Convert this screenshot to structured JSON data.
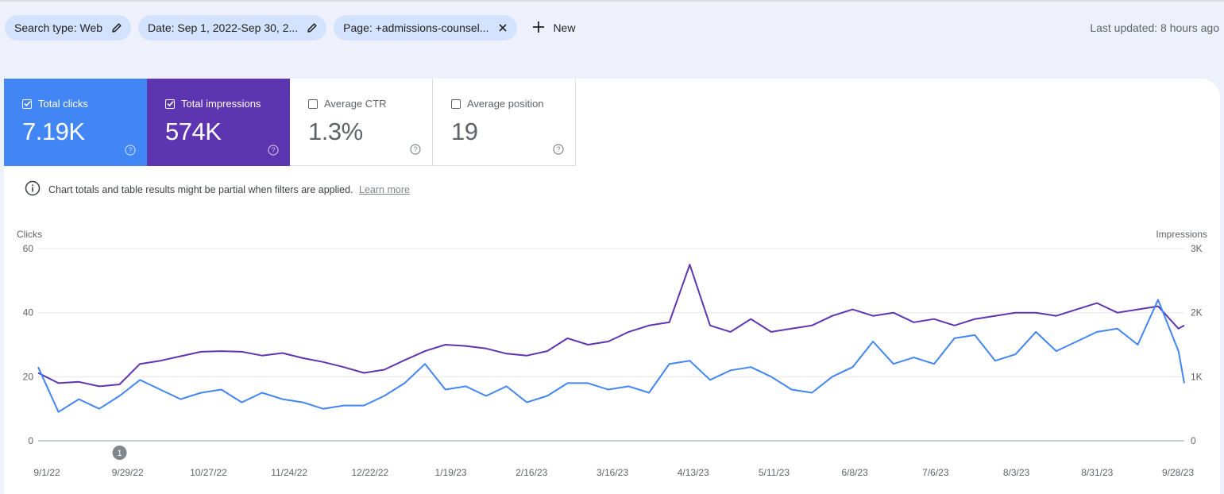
{
  "filters": {
    "search_type": "Search type: Web",
    "date": "Date: Sep 1, 2022-Sep 30, 2...",
    "page": "Page: +admissions-counsel...",
    "new_label": "New",
    "last_updated": "Last updated: 8 hours ago"
  },
  "metrics": [
    {
      "label": "Total clicks",
      "value": "7.19K",
      "checked": true,
      "color": "#4285f4"
    },
    {
      "label": "Total impressions",
      "value": "574K",
      "checked": true,
      "color": "#5e35b1"
    },
    {
      "label": "Average CTR",
      "value": "1.3%",
      "checked": false
    },
    {
      "label": "Average position",
      "value": "19",
      "checked": false
    }
  ],
  "notice": {
    "text": "Chart totals and table results might be partial when filters are applied.",
    "link": "Learn more"
  },
  "chart_data": {
    "type": "line",
    "ylabel_left": "Clicks",
    "ylabel_right": "Impressions",
    "y_left_ticks": [
      "60",
      "40",
      "20",
      "0"
    ],
    "y_right_ticks": [
      "3K",
      "2K",
      "1K",
      "0"
    ],
    "ylim_left": [
      0,
      60
    ],
    "ylim_right": [
      0,
      3000
    ],
    "x_tick_labels": [
      "9/1/22",
      "9/29/22",
      "10/27/22",
      "11/24/22",
      "12/22/22",
      "1/19/23",
      "2/16/23",
      "3/16/23",
      "4/13/23",
      "5/11/23",
      "6/8/23",
      "7/6/23",
      "8/3/23",
      "8/31/23",
      "9/28/23"
    ],
    "x_range": [
      "2022-09-01",
      "2023-09-30"
    ],
    "annotation": {
      "label": "1",
      "date": "2022-09-29"
    },
    "series": [
      {
        "name": "Total clicks",
        "axis": "left",
        "color": "#4285f4",
        "x": [
          "2022-09-01",
          "2022-09-08",
          "2022-09-15",
          "2022-09-22",
          "2022-09-29",
          "2022-10-06",
          "2022-10-13",
          "2022-10-20",
          "2022-10-27",
          "2022-11-03",
          "2022-11-10",
          "2022-11-17",
          "2022-11-24",
          "2022-12-01",
          "2022-12-08",
          "2022-12-15",
          "2022-12-22",
          "2022-12-29",
          "2023-01-05",
          "2023-01-12",
          "2023-01-19",
          "2023-01-26",
          "2023-02-02",
          "2023-02-09",
          "2023-02-16",
          "2023-02-23",
          "2023-03-02",
          "2023-03-09",
          "2023-03-16",
          "2023-03-23",
          "2023-03-30",
          "2023-04-06",
          "2023-04-13",
          "2023-04-20",
          "2023-04-27",
          "2023-05-04",
          "2023-05-11",
          "2023-05-18",
          "2023-05-25",
          "2023-06-01",
          "2023-06-08",
          "2023-06-15",
          "2023-06-22",
          "2023-06-29",
          "2023-07-06",
          "2023-07-13",
          "2023-07-20",
          "2023-07-27",
          "2023-08-03",
          "2023-08-10",
          "2023-08-17",
          "2023-08-24",
          "2023-08-31",
          "2023-09-07",
          "2023-09-14",
          "2023-09-21",
          "2023-09-28",
          "2023-09-30"
        ],
        "values": [
          23,
          9,
          13,
          10,
          14,
          19,
          16,
          13,
          15,
          16,
          12,
          15,
          13,
          12,
          10,
          11,
          11,
          14,
          18,
          24,
          16,
          17,
          14,
          17,
          12,
          14,
          18,
          18,
          16,
          17,
          15,
          24,
          25,
          19,
          22,
          23,
          20,
          16,
          15,
          20,
          23,
          31,
          24,
          26,
          24,
          32,
          33,
          25,
          27,
          34,
          28,
          31,
          34,
          35,
          30,
          44,
          28,
          18
        ]
      },
      {
        "name": "Total impressions",
        "axis": "right",
        "color": "#5e35b1",
        "x": [
          "2022-09-01",
          "2022-09-08",
          "2022-09-15",
          "2022-09-22",
          "2022-09-29",
          "2022-10-06",
          "2022-10-13",
          "2022-10-20",
          "2022-10-27",
          "2022-11-03",
          "2022-11-10",
          "2022-11-17",
          "2022-11-24",
          "2022-12-01",
          "2022-12-08",
          "2022-12-15",
          "2022-12-22",
          "2022-12-29",
          "2023-01-05",
          "2023-01-12",
          "2023-01-19",
          "2023-01-26",
          "2023-02-02",
          "2023-02-09",
          "2023-02-16",
          "2023-02-23",
          "2023-03-02",
          "2023-03-09",
          "2023-03-16",
          "2023-03-23",
          "2023-03-30",
          "2023-04-06",
          "2023-04-13",
          "2023-04-20",
          "2023-04-27",
          "2023-05-04",
          "2023-05-11",
          "2023-05-18",
          "2023-05-25",
          "2023-06-01",
          "2023-06-08",
          "2023-06-15",
          "2023-06-22",
          "2023-06-29",
          "2023-07-06",
          "2023-07-13",
          "2023-07-20",
          "2023-07-27",
          "2023-08-03",
          "2023-08-10",
          "2023-08-17",
          "2023-08-24",
          "2023-08-31",
          "2023-09-07",
          "2023-09-14",
          "2023-09-21",
          "2023-09-28",
          "2023-09-30"
        ],
        "values": [
          1060,
          900,
          920,
          850,
          880,
          1200,
          1250,
          1320,
          1390,
          1400,
          1390,
          1330,
          1370,
          1290,
          1230,
          1150,
          1060,
          1110,
          1260,
          1400,
          1500,
          1480,
          1440,
          1360,
          1330,
          1400,
          1600,
          1500,
          1550,
          1700,
          1800,
          1850,
          2750,
          1800,
          1700,
          1900,
          1700,
          1750,
          1800,
          1950,
          2050,
          1950,
          2000,
          1850,
          1900,
          1800,
          1900,
          1950,
          2000,
          2000,
          1950,
          2050,
          2150,
          2000,
          2050,
          2100,
          1750,
          1800
        ]
      }
    ]
  }
}
